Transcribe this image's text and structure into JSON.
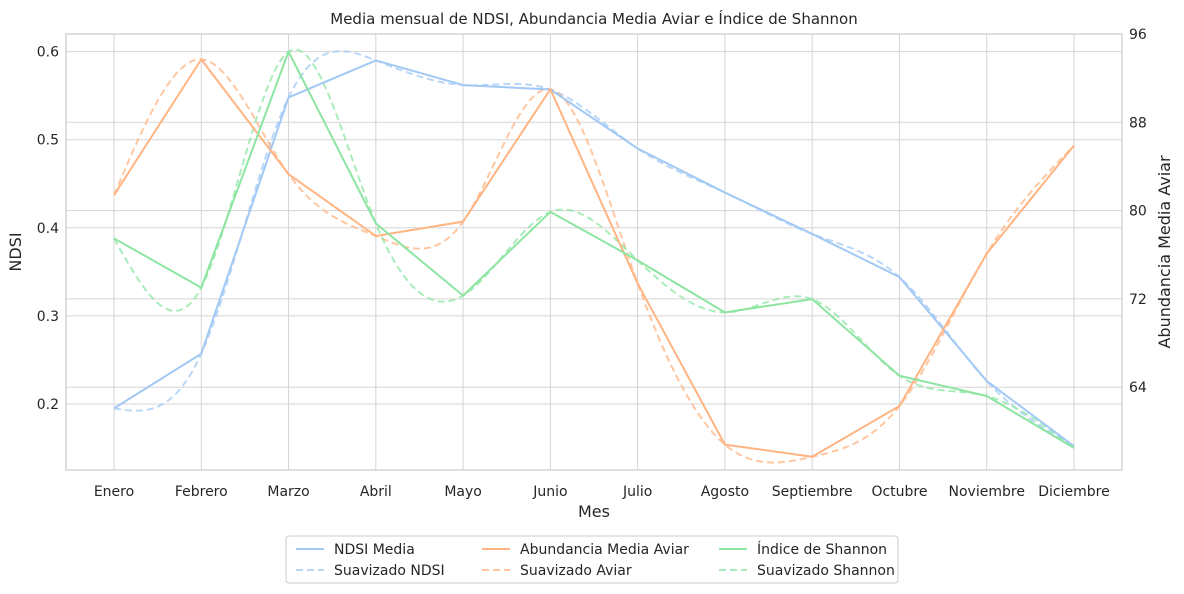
{
  "chart_data": {
    "type": "line",
    "title": "Media mensual de NDSI, Abundancia Media Aviar e Índice de Shannon",
    "xlabel": "Mes",
    "ylabel": "NDSI",
    "ylabel_right": "Abundancia Media Aviar",
    "categories": [
      "Enero",
      "Febrero",
      "Marzo",
      "Abril",
      "Mayo",
      "Junio",
      "Julio",
      "Agosto",
      "Septiembre",
      "Octubre",
      "Noviembre",
      "Diciembre"
    ],
    "ylim": [
      0.125,
      0.62
    ],
    "ylim_right": [
      56.5,
      96
    ],
    "yticks": [
      "0.2",
      "0.3",
      "0.4",
      "0.5",
      "0.6"
    ],
    "yticks_values": [
      0.2,
      0.3,
      0.4,
      0.5,
      0.6
    ],
    "yticks_right": [
      "64",
      "72",
      "80",
      "88",
      "96"
    ],
    "yticks_right_values": [
      64,
      72,
      80,
      88,
      96
    ],
    "grid": true,
    "legend_placement": "bottom-center",
    "series": [
      {
        "name": "NDSI Media",
        "axis": "left",
        "style": "solid",
        "color": "#a1c9f4",
        "values": [
          0.195,
          0.257,
          0.548,
          0.59,
          0.562,
          0.557,
          0.49,
          0.44,
          0.393,
          0.344,
          0.226,
          0.152
        ]
      },
      {
        "name": "Suavizado NDSI",
        "axis": "left",
        "style": "dashed",
        "color": "#a1c9f4",
        "smooth_of": 0,
        "values": [
          0.195,
          0.257,
          0.548,
          0.59,
          0.562,
          0.557,
          0.49,
          0.44,
          0.393,
          0.344,
          0.226,
          0.152
        ]
      },
      {
        "name": "Abundancia Media Aviar",
        "axis": "right",
        "style": "solid",
        "color": "#ffb482",
        "values": [
          81.4,
          93.7,
          83.3,
          77.7,
          79.0,
          91.0,
          73.4,
          58.8,
          57.7,
          62.3,
          76.1,
          85.9
        ]
      },
      {
        "name": "Suavizado Aviar",
        "axis": "right",
        "style": "dashed",
        "color": "#ffb482",
        "smooth_of": 2,
        "values": [
          81.4,
          93.7,
          83.3,
          77.7,
          79.0,
          91.0,
          73.4,
          58.8,
          57.7,
          62.3,
          76.1,
          85.9
        ]
      },
      {
        "name": "Índice de Shannon",
        "axis": "left",
        "style": "solid",
        "color": "#8de5a1",
        "values": [
          0.388,
          0.332,
          0.6,
          0.405,
          0.323,
          0.418,
          0.363,
          0.304,
          0.319,
          0.232,
          0.209,
          0.15
        ]
      },
      {
        "name": "Suavizado Shannon",
        "axis": "left",
        "style": "dashed",
        "color": "#8de5a1",
        "smooth_of": 4,
        "values": [
          0.388,
          0.332,
          0.6,
          0.405,
          0.323,
          0.418,
          0.363,
          0.304,
          0.319,
          0.232,
          0.209,
          0.15
        ]
      }
    ]
  }
}
